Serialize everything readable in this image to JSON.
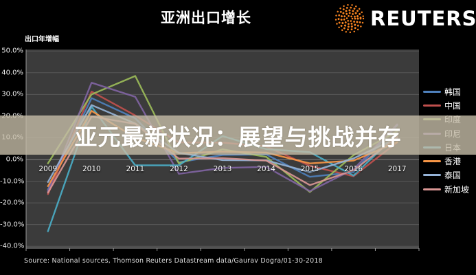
{
  "header": {
    "title": "亚洲出口增长",
    "logo_text": "REUTERS"
  },
  "overlay": {
    "headline": "亚元最新状况：展望与挑战并存"
  },
  "footer": {
    "source": "Source:  National sources, Thomson  Reuters Datastream  data/Gaurav  Dogra/01-30-2018"
  },
  "colors": {
    "background": "#000000",
    "plot_background": "#3b3b3b",
    "gridline": "#585858",
    "zero_line": "#808080",
    "axis_line": "#9a9a9a",
    "band": "#c5bda8",
    "logo_orange": "#F58220",
    "text": "#ffffff"
  },
  "chart_data": {
    "type": "line",
    "title": "亚洲出口增长",
    "ylabel": "出口年增幅",
    "ylim": [
      -40,
      50
    ],
    "grid": true,
    "legend_position": "right",
    "ytick_labels": [
      "50.0%",
      "40.0%",
      "30.0%",
      "20.0%",
      "10.0%",
      "0.0%",
      "-10.0%",
      "-20.0%",
      "-30.0%",
      "-40.0%"
    ],
    "ytick_values": [
      50,
      40,
      30,
      20,
      10,
      0,
      -10,
      -20,
      -30,
      -40
    ],
    "categories": [
      "2009",
      "2010",
      "2011",
      "2012",
      "2013",
      "2014",
      "2015",
      "2016",
      "2017"
    ],
    "series": [
      {
        "name": "韩国",
        "color": "#4F81BD",
        "values": [
          -13.9,
          28.3,
          19.0,
          -1.3,
          2.1,
          2.3,
          -8.0,
          -5.9,
          15.8
        ]
      },
      {
        "name": "中国",
        "color": "#C0504D",
        "values": [
          -16.0,
          31.3,
          20.3,
          7.9,
          7.8,
          6.0,
          -2.9,
          -7.7,
          7.9
        ]
      },
      {
        "name": "印度",
        "color": "#9BBB59",
        "values": [
          -1.8,
          30.0,
          38.5,
          -1.8,
          4.7,
          1.2,
          -15.0,
          2.0,
          13.0
        ]
      },
      {
        "name": "印尼",
        "color": "#8064A2",
        "values": [
          -14.6,
          35.4,
          28.9,
          -6.6,
          -3.9,
          -3.4,
          -14.6,
          -4.5,
          16.2
        ]
      },
      {
        "name": "日本",
        "color": "#4BACC6",
        "values": [
          -33.1,
          24.4,
          -2.7,
          -2.7,
          10.8,
          4.8,
          3.4,
          -7.4,
          11.8
        ]
      },
      {
        "name": "香港",
        "color": "#F79646",
        "values": [
          -12.3,
          22.4,
          10.1,
          2.9,
          3.6,
          3.2,
          -1.8,
          -0.5,
          8.0
        ]
      },
      {
        "name": "泰国",
        "color": "#95B3D7",
        "values": [
          -10.4,
          25.1,
          16.6,
          3.1,
          -0.3,
          -0.4,
          -5.8,
          0.5,
          9.9
        ]
      },
      {
        "name": "新加坡",
        "color": "#D99694",
        "values": [
          -15.3,
          19.8,
          16.4,
          0.4,
          0.6,
          -0.5,
          -11.8,
          -5.0,
          10.4
        ]
      }
    ]
  }
}
